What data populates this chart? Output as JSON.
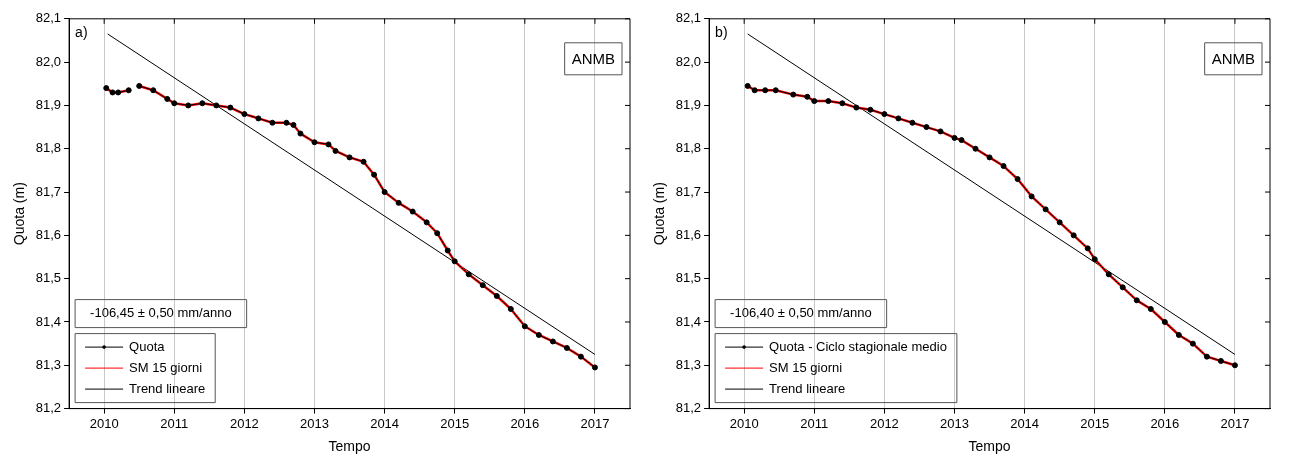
{
  "chart_data": [
    {
      "type": "line",
      "xlabel": "Tempo",
      "ylabel": "Quota (m)",
      "xlim": [
        2009.5,
        2017.5
      ],
      "xticks": [
        2010,
        2011,
        2012,
        2013,
        2014,
        2015,
        2016,
        2017
      ],
      "ylim": [
        81.2,
        82.1
      ],
      "yticks": [
        {
          "value": 81.2,
          "label": "81,2"
        },
        {
          "value": 81.3,
          "label": "81,3"
        },
        {
          "value": 81.4,
          "label": "81,4"
        },
        {
          "value": 81.5,
          "label": "81,5"
        },
        {
          "value": 81.6,
          "label": "81,6"
        },
        {
          "value": 81.7,
          "label": "81,7"
        },
        {
          "value": 81.8,
          "label": "81,8"
        },
        {
          "value": 81.9,
          "label": "81,9"
        },
        {
          "value": 82.0,
          "label": "82,0"
        },
        {
          "value": 82.1,
          "label": "82,1"
        }
      ],
      "grid": "x",
      "legend": "bottom left",
      "annotations": [
        "a)",
        "ANMB",
        "-106,45 ± 0,50 mm/anno"
      ],
      "series": [
        {
          "name": "Quota",
          "color": "#000000",
          "marker": "circle",
          "x": [
            2010.03,
            2010.12,
            2010.2,
            2010.35,
            2010.42,
            2010.5,
            2010.7,
            2010.9,
            2011.0,
            2011.2,
            2011.4,
            2011.6,
            2011.8,
            2012.0,
            2012.2,
            2012.4,
            2012.6,
            2012.7,
            2012.8,
            2013.0,
            2013.2,
            2013.3,
            2013.5,
            2013.7,
            2013.85,
            2014.0,
            2014.2,
            2014.4,
            2014.6,
            2014.75,
            2014.9,
            2015.0,
            2015.2,
            2015.4,
            2015.6,
            2015.8,
            2016.0,
            2016.2,
            2016.4,
            2016.6,
            2016.8,
            2017.0
          ],
          "values": [
            81.94,
            81.93,
            81.93,
            81.935,
            null,
            81.945,
            81.935,
            81.915,
            81.905,
            81.9,
            81.905,
            81.9,
            81.895,
            81.88,
            81.87,
            81.86,
            81.86,
            81.855,
            81.835,
            81.815,
            81.81,
            81.795,
            81.78,
            81.77,
            81.74,
            81.7,
            81.675,
            81.655,
            81.63,
            81.605,
            81.565,
            81.54,
            81.51,
            81.485,
            81.46,
            81.43,
            81.39,
            81.37,
            81.355,
            81.34,
            81.32,
            81.295
          ]
        },
        {
          "name": "SM 15 giorni",
          "color": "#ff0000",
          "x": [
            2010.03,
            2010.12,
            2010.2,
            2010.35,
            2010.42,
            2010.5,
            2010.7,
            2010.9,
            2011.0,
            2011.2,
            2011.4,
            2011.6,
            2011.8,
            2012.0,
            2012.2,
            2012.4,
            2012.6,
            2012.7,
            2012.8,
            2013.0,
            2013.2,
            2013.3,
            2013.5,
            2013.7,
            2013.85,
            2014.0,
            2014.2,
            2014.4,
            2014.6,
            2014.75,
            2014.9,
            2015.0,
            2015.2,
            2015.4,
            2015.6,
            2015.8,
            2016.0,
            2016.2,
            2016.4,
            2016.6,
            2016.8,
            2017.0
          ],
          "values": [
            81.94,
            81.93,
            81.93,
            81.935,
            null,
            81.945,
            81.935,
            81.915,
            81.905,
            81.9,
            81.905,
            81.9,
            81.895,
            81.88,
            81.87,
            81.86,
            81.86,
            81.855,
            81.835,
            81.815,
            81.81,
            81.795,
            81.78,
            81.77,
            81.74,
            81.7,
            81.675,
            81.655,
            81.63,
            81.605,
            81.565,
            81.54,
            81.51,
            81.485,
            81.46,
            81.43,
            81.39,
            81.37,
            81.355,
            81.34,
            81.32,
            81.295
          ]
        },
        {
          "name": "Trend lineare",
          "color": "#000000",
          "x": [
            2010.05,
            2017.0
          ],
          "values": [
            82.065,
            81.325
          ]
        }
      ]
    },
    {
      "type": "line",
      "xlabel": "Tempo",
      "ylabel": "Quota (m)",
      "xlim": [
        2009.5,
        2017.5
      ],
      "xticks": [
        2010,
        2011,
        2012,
        2013,
        2014,
        2015,
        2016,
        2017
      ],
      "ylim": [
        81.2,
        82.1
      ],
      "yticks": [
        {
          "value": 81.2,
          "label": "81,2"
        },
        {
          "value": 81.3,
          "label": "81,3"
        },
        {
          "value": 81.4,
          "label": "81,4"
        },
        {
          "value": 81.5,
          "label": "81,5"
        },
        {
          "value": 81.6,
          "label": "81,6"
        },
        {
          "value": 81.7,
          "label": "81,7"
        },
        {
          "value": 81.8,
          "label": "81,8"
        },
        {
          "value": 81.9,
          "label": "81,9"
        },
        {
          "value": 82.0,
          "label": "82,0"
        },
        {
          "value": 82.1,
          "label": "82,1"
        }
      ],
      "grid": "x",
      "legend": "bottom left",
      "annotations": [
        "b)",
        "ANMB",
        "-106,40 ± 0,50 mm/anno"
      ],
      "series": [
        {
          "name": "Quota - Ciclo stagionale medio",
          "color": "#000000",
          "marker": "circle",
          "x": [
            2010.05,
            2010.15,
            2010.3,
            2010.45,
            2010.7,
            2010.9,
            2011.0,
            2011.2,
            2011.4,
            2011.6,
            2011.8,
            2012.0,
            2012.2,
            2012.4,
            2012.6,
            2012.8,
            2013.0,
            2013.1,
            2013.3,
            2013.5,
            2013.7,
            2013.9,
            2014.1,
            2014.3,
            2014.5,
            2014.7,
            2014.9,
            2015.0,
            2015.2,
            2015.4,
            2015.6,
            2015.8,
            2016.0,
            2016.2,
            2016.4,
            2016.6,
            2016.8,
            2017.0
          ],
          "values": [
            81.945,
            81.935,
            81.935,
            81.935,
            81.925,
            81.92,
            81.91,
            81.91,
            81.905,
            81.895,
            81.89,
            81.88,
            81.87,
            81.86,
            81.85,
            81.84,
            81.825,
            81.82,
            81.8,
            81.78,
            81.76,
            81.73,
            81.69,
            81.66,
            81.63,
            81.6,
            81.57,
            81.545,
            81.51,
            81.48,
            81.45,
            81.43,
            81.4,
            81.37,
            81.35,
            81.32,
            81.31,
            81.3
          ]
        },
        {
          "name": "SM 15 giorni",
          "color": "#ff0000",
          "x": [
            2010.05,
            2010.15,
            2010.3,
            2010.45,
            2010.7,
            2010.9,
            2011.0,
            2011.2,
            2011.4,
            2011.6,
            2011.8,
            2012.0,
            2012.2,
            2012.4,
            2012.6,
            2012.8,
            2013.0,
            2013.1,
            2013.3,
            2013.5,
            2013.7,
            2013.9,
            2014.1,
            2014.3,
            2014.5,
            2014.7,
            2014.9,
            2015.0,
            2015.2,
            2015.4,
            2015.6,
            2015.8,
            2016.0,
            2016.2,
            2016.4,
            2016.6,
            2016.8,
            2017.0
          ],
          "values": [
            81.945,
            81.935,
            81.935,
            81.935,
            81.925,
            81.92,
            81.91,
            81.91,
            81.905,
            81.895,
            81.89,
            81.88,
            81.87,
            81.86,
            81.85,
            81.84,
            81.825,
            81.82,
            81.8,
            81.78,
            81.76,
            81.73,
            81.69,
            81.66,
            81.63,
            81.6,
            81.57,
            81.545,
            81.51,
            81.48,
            81.45,
            81.43,
            81.4,
            81.37,
            81.35,
            81.32,
            81.31,
            81.3
          ]
        },
        {
          "name": "Trend lineare",
          "color": "#000000",
          "x": [
            2010.05,
            2017.0
          ],
          "values": [
            82.065,
            81.325
          ]
        }
      ]
    }
  ]
}
